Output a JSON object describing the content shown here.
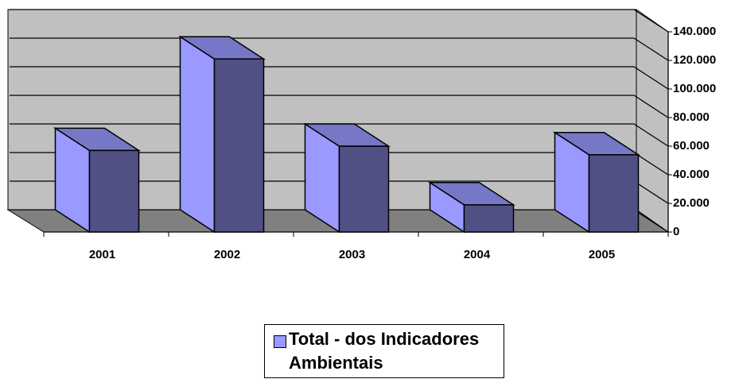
{
  "chart_data": {
    "type": "bar3d",
    "categories": [
      "2001",
      "2002",
      "2003",
      "2004",
      "2005"
    ],
    "series": [
      {
        "name": "Total - dos Indicadores Ambientais",
        "color": "#9999ff",
        "values": [
          57000,
          121000,
          60000,
          19000,
          54000
        ]
      }
    ],
    "ylim": [
      0,
      140000
    ],
    "yticks": [
      0,
      {
        "value": 20000,
        "label": "20.000"
      },
      {
        "value": 40000,
        "label": "40.000"
      },
      {
        "value": 60000,
        "label": "60.000"
      },
      {
        "value": 80000,
        "label": "80.000"
      },
      {
        "value": 100000,
        "label": "100.000"
      },
      {
        "value": 120000,
        "label": "120.000"
      },
      {
        "value": 140000,
        "label": "140.000"
      }
    ],
    "grid": true,
    "legend": "bottom"
  }
}
